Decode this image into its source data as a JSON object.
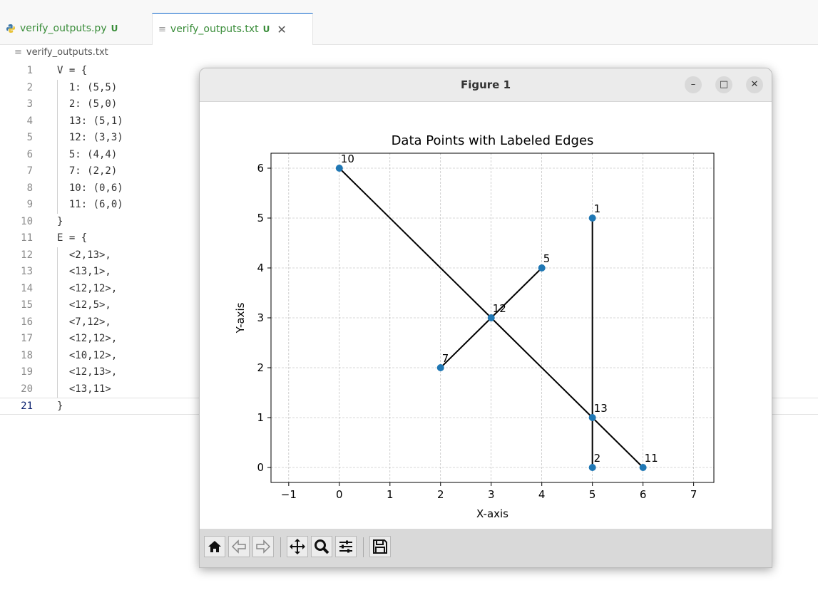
{
  "tabs": [
    {
      "label": "verify_outputs.py",
      "status": "U"
    },
    {
      "label": "verify_outputs.txt",
      "status": "U",
      "close": "✕"
    }
  ],
  "breadcrumb": "verify_outputs.txt",
  "editor": {
    "lines": [
      {
        "num": "1",
        "text": "V = {"
      },
      {
        "num": "2",
        "text": "  1: (5,5)"
      },
      {
        "num": "3",
        "text": "  2: (5,0)"
      },
      {
        "num": "4",
        "text": "  13: (5,1)"
      },
      {
        "num": "5",
        "text": "  12: (3,3)"
      },
      {
        "num": "6",
        "text": "  5: (4,4)"
      },
      {
        "num": "7",
        "text": "  7: (2,2)"
      },
      {
        "num": "8",
        "text": "  10: (0,6)"
      },
      {
        "num": "9",
        "text": "  11: (6,0)"
      },
      {
        "num": "10",
        "text": "}"
      },
      {
        "num": "11",
        "text": "E = {"
      },
      {
        "num": "12",
        "text": "  <2,13>,"
      },
      {
        "num": "13",
        "text": "  <13,1>,"
      },
      {
        "num": "14",
        "text": "  <12,12>,"
      },
      {
        "num": "15",
        "text": "  <12,5>,"
      },
      {
        "num": "16",
        "text": "  <7,12>,"
      },
      {
        "num": "17",
        "text": "  <12,12>,"
      },
      {
        "num": "18",
        "text": "  <10,12>,"
      },
      {
        "num": "19",
        "text": "  <12,13>,"
      },
      {
        "num": "20",
        "text": "  <13,11>"
      },
      {
        "num": "21",
        "text": "}"
      }
    ]
  },
  "figure_window": {
    "title": "Figure 1",
    "minimize": "–",
    "maximize": "□",
    "close": "✕"
  },
  "toolbar": [
    "home-icon",
    "back-icon",
    "forward-icon",
    "pan-icon",
    "zoom-icon",
    "configure-subplots-icon",
    "save-icon"
  ],
  "chart_data": {
    "type": "scatter",
    "title": "Data Points with Labeled Edges",
    "xlabel": "X-axis",
    "ylabel": "Y-axis",
    "xlim": [
      -1.35,
      7.4
    ],
    "ylim": [
      -0.3,
      6.3
    ],
    "xticks": [
      -1,
      0,
      1,
      2,
      3,
      4,
      5,
      6,
      7
    ],
    "yticks": [
      0,
      1,
      2,
      3,
      4,
      5,
      6
    ],
    "grid": true,
    "points": [
      {
        "label": "1",
        "x": 5,
        "y": 5
      },
      {
        "label": "2",
        "x": 5,
        "y": 0
      },
      {
        "label": "13",
        "x": 5,
        "y": 1
      },
      {
        "label": "12",
        "x": 3,
        "y": 3
      },
      {
        "label": "5",
        "x": 4,
        "y": 4
      },
      {
        "label": "7",
        "x": 2,
        "y": 2
      },
      {
        "label": "10",
        "x": 0,
        "y": 6
      },
      {
        "label": "11",
        "x": 6,
        "y": 0
      }
    ],
    "edges": [
      [
        "2",
        "13"
      ],
      [
        "13",
        "1"
      ],
      [
        "12",
        "12"
      ],
      [
        "12",
        "5"
      ],
      [
        "7",
        "12"
      ],
      [
        "12",
        "12"
      ],
      [
        "10",
        "12"
      ],
      [
        "12",
        "13"
      ],
      [
        "13",
        "11"
      ]
    ],
    "colors": {
      "point": "#1f77b4",
      "edge": "#000000",
      "grid": "#b0b0b0"
    }
  }
}
